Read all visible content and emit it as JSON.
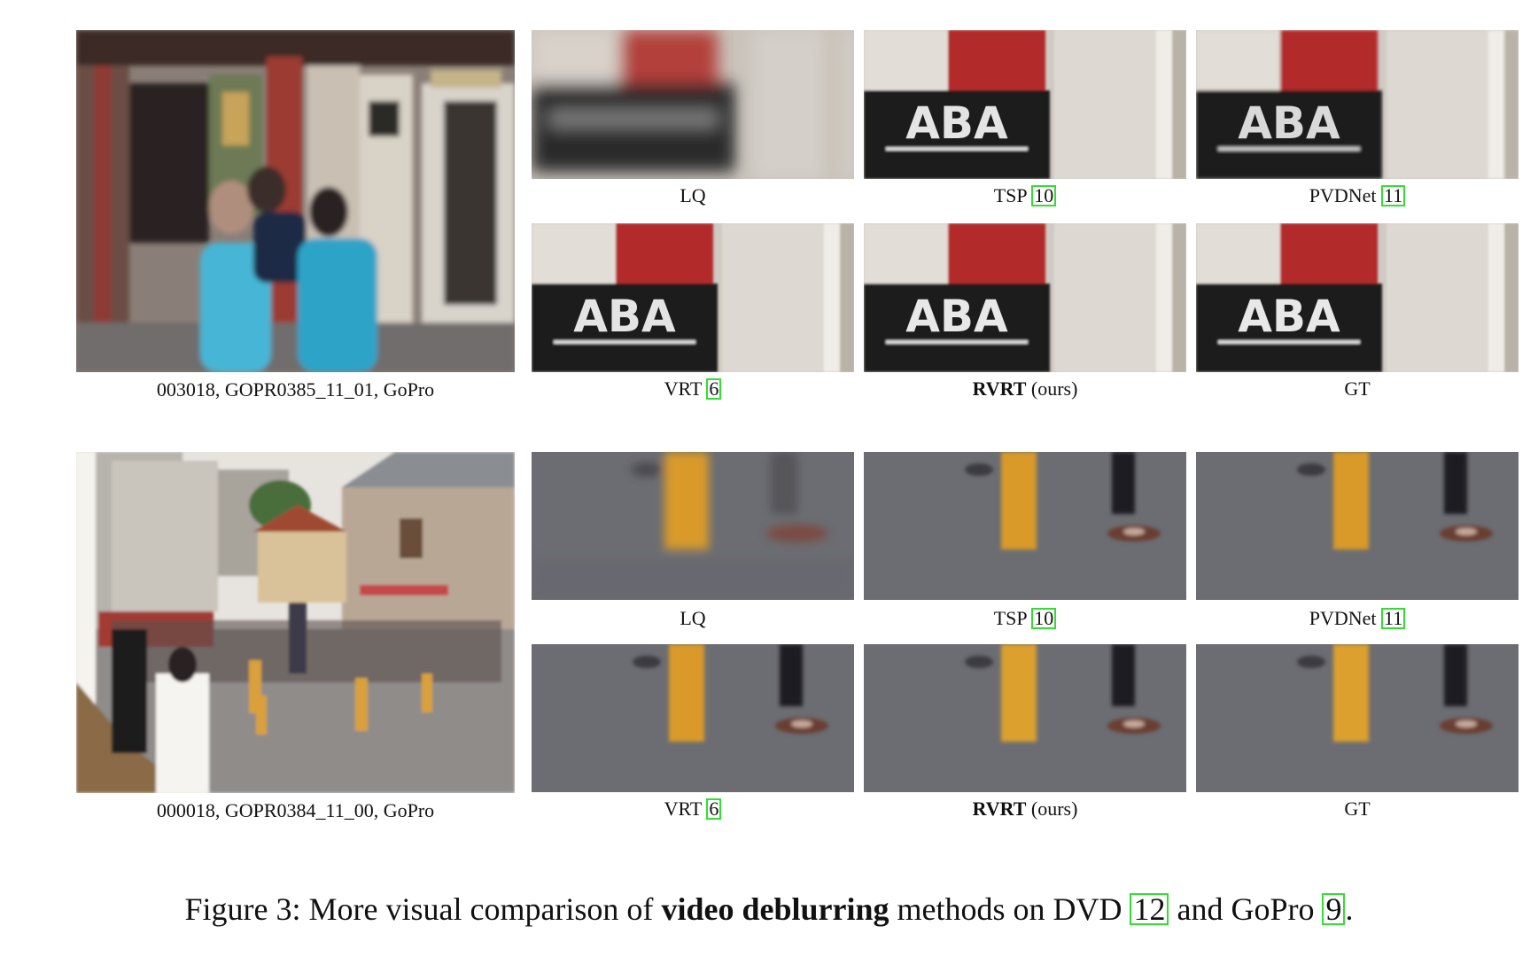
{
  "rows": [
    {
      "main_caption": "003018, GOPR0385_11_01, GoPro",
      "crop_captions": [
        {
          "label": "LQ",
          "ref": "",
          "suffix": ""
        },
        {
          "label": "TSP",
          "ref": "10",
          "suffix": ""
        },
        {
          "label": "PVDNet",
          "ref": "11",
          "suffix": ""
        },
        {
          "label": "VRT",
          "ref": "6",
          "suffix": ""
        },
        {
          "label": "RVRT",
          "ref": "",
          "suffix": "(ours)",
          "bold": true
        },
        {
          "label": "GT",
          "ref": "",
          "suffix": ""
        }
      ],
      "sign_text": "ABA"
    },
    {
      "main_caption": "000018, GOPR0384_11_00, GoPro",
      "crop_captions": [
        {
          "label": "LQ",
          "ref": "",
          "suffix": ""
        },
        {
          "label": "TSP",
          "ref": "10",
          "suffix": ""
        },
        {
          "label": "PVDNet",
          "ref": "11",
          "suffix": ""
        },
        {
          "label": "VRT",
          "ref": "6",
          "suffix": ""
        },
        {
          "label": "RVRT",
          "ref": "",
          "suffix": "(ours)",
          "bold": true
        },
        {
          "label": "GT",
          "ref": "",
          "suffix": ""
        }
      ]
    }
  ],
  "figure_caption": {
    "prefix": "Figure 3: More visual comparison of",
    "bold": "video deblurring",
    "middle": "methods on DVD",
    "ref1": "12",
    "and": "and GoPro",
    "ref2": "9",
    "end": "."
  },
  "colors": {
    "citation_box": "#33dd33",
    "sign_red": "#b22a2a",
    "sign_black": "#1a1a1a",
    "pavement": "#6b6d72",
    "bollard": "#d99a2b"
  }
}
